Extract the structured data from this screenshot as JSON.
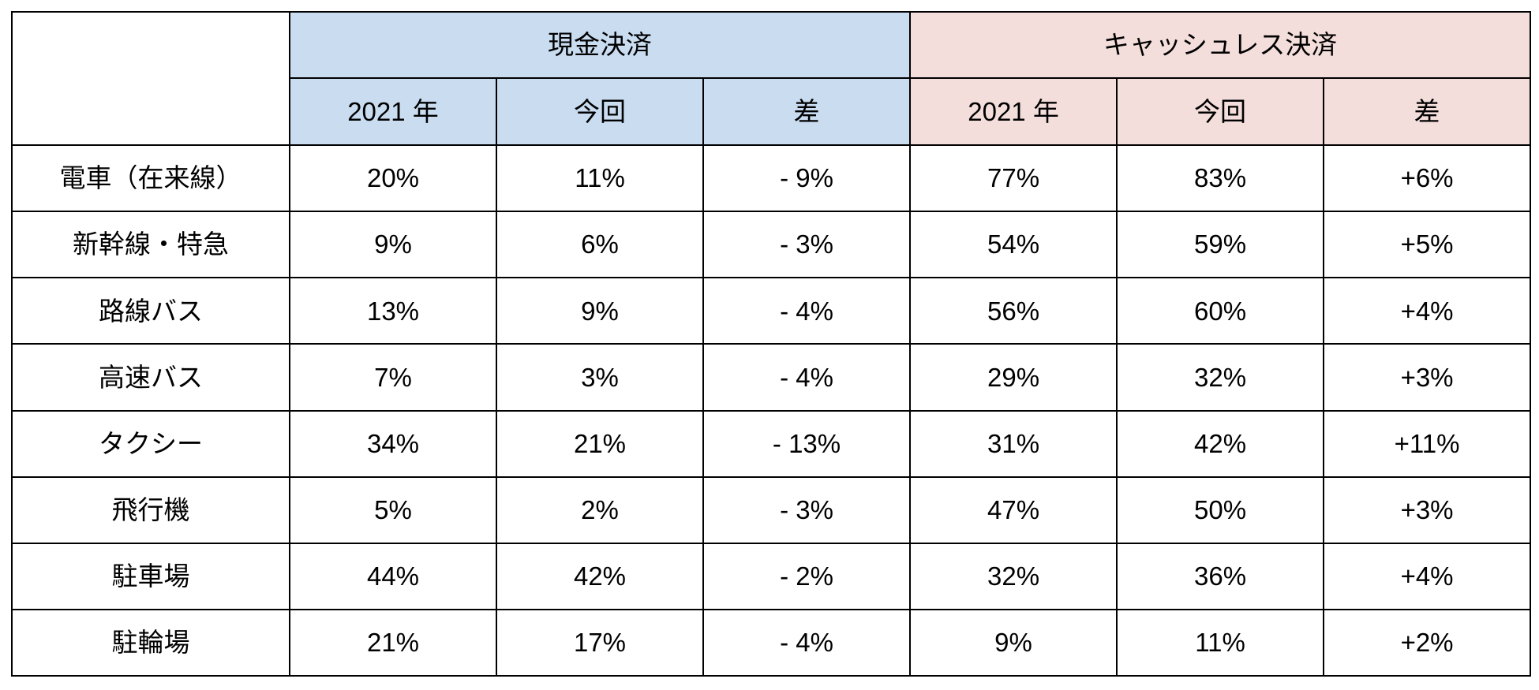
{
  "table": {
    "corner_label": "",
    "groups": [
      {
        "label": "現金決済",
        "color": "#C9DCF0"
      },
      {
        "label": "キャッシュレス決済",
        "color": "#F3DEDB"
      }
    ],
    "sub_headers": [
      "2021 年",
      "今回",
      "差"
    ],
    "rows": [
      {
        "label": "電車（在来線）",
        "cash": [
          "20%",
          "11%",
          "- 9%"
        ],
        "cashless": [
          "77%",
          "83%",
          "+6%"
        ]
      },
      {
        "label": "新幹線・特急",
        "cash": [
          "9%",
          "6%",
          "- 3%"
        ],
        "cashless": [
          "54%",
          "59%",
          "+5%"
        ]
      },
      {
        "label": "路線バス",
        "cash": [
          "13%",
          "9%",
          "- 4%"
        ],
        "cashless": [
          "56%",
          "60%",
          "+4%"
        ]
      },
      {
        "label": "高速バス",
        "cash": [
          "7%",
          "3%",
          "- 4%"
        ],
        "cashless": [
          "29%",
          "32%",
          "+3%"
        ]
      },
      {
        "label": "タクシー",
        "cash": [
          "34%",
          "21%",
          "- 13%"
        ],
        "cashless": [
          "31%",
          "42%",
          "+11%"
        ]
      },
      {
        "label": "飛行機",
        "cash": [
          "5%",
          "2%",
          "- 3%"
        ],
        "cashless": [
          "47%",
          "50%",
          "+3%"
        ]
      },
      {
        "label": "駐車場",
        "cash": [
          "44%",
          "42%",
          "- 2%"
        ],
        "cashless": [
          "32%",
          "36%",
          "+4%"
        ]
      },
      {
        "label": "駐輪場",
        "cash": [
          "21%",
          "17%",
          "- 4%"
        ],
        "cashless": [
          "9%",
          "11%",
          "+2%"
        ]
      }
    ]
  },
  "chart_data": {
    "type": "table",
    "title": "",
    "unit": "%",
    "column_groups": [
      "現金決済",
      "キャッシュレス決済"
    ],
    "columns": [
      "2021年",
      "今回",
      "差"
    ],
    "categories": [
      "電車（在来線）",
      "新幹線・特急",
      "路線バス",
      "高速バス",
      "タクシー",
      "飛行機",
      "駐車場",
      "駐輪場"
    ],
    "series": [
      {
        "name": "現金決済 2021年",
        "values": [
          20,
          9,
          13,
          7,
          34,
          5,
          44,
          21
        ]
      },
      {
        "name": "現金決済 今回",
        "values": [
          11,
          6,
          9,
          3,
          21,
          2,
          42,
          17
        ]
      },
      {
        "name": "現金決済 差",
        "values": [
          -9,
          -3,
          -4,
          -4,
          -13,
          -3,
          -2,
          -4
        ]
      },
      {
        "name": "キャッシュレス決済 2021年",
        "values": [
          77,
          54,
          56,
          29,
          31,
          47,
          32,
          9
        ]
      },
      {
        "name": "キャッシュレス決済 今回",
        "values": [
          83,
          59,
          60,
          32,
          42,
          50,
          36,
          11
        ]
      },
      {
        "name": "キャッシュレス決済 差",
        "values": [
          6,
          5,
          4,
          3,
          11,
          3,
          4,
          2
        ]
      }
    ],
    "colors": {
      "cash_header": "#C9DCF0",
      "cashless_header": "#F3DEDB",
      "border": "#000000"
    },
    "layout": {
      "grid": true,
      "header_rows": 2,
      "merged_corner_cell": true
    }
  }
}
